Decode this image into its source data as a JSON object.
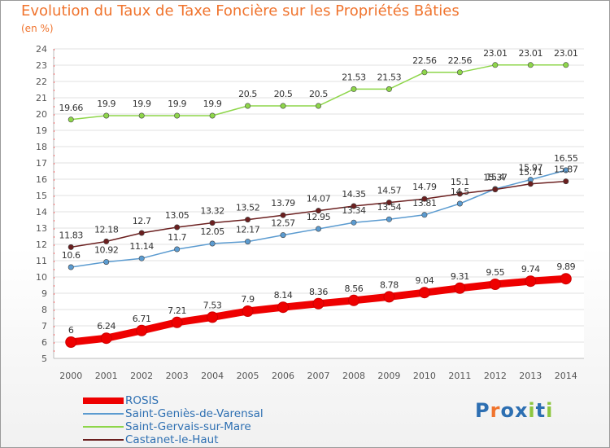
{
  "title": "Evolution du Taux de Taxe Foncière sur les Propriétés Bâties",
  "subtitle": "(en %)",
  "logo": {
    "text": "Proxiti",
    "colors": [
      "#2d6fb2",
      "#f0742e",
      "#2d6fb2",
      "#2d6fb2",
      "#8dc63f",
      "#2d6fb2",
      "#8dc63f"
    ]
  },
  "chart_data": {
    "type": "line",
    "title": "Evolution du Taux de Taxe Foncière sur les Propriétés Bâties",
    "ylabel": "(en %)",
    "xlabel": "",
    "x": [
      "2000",
      "2001",
      "2002",
      "2003",
      "2004",
      "2005",
      "2006",
      "2007",
      "2008",
      "2009",
      "2010",
      "2011",
      "2012",
      "2013",
      "2014"
    ],
    "ylim": [
      5,
      24
    ],
    "yticks": [
      "5",
      "6",
      "7",
      "8",
      "9",
      "10",
      "11",
      "12",
      "13",
      "14",
      "15",
      "16",
      "17",
      "18",
      "19",
      "20",
      "21",
      "22",
      "23",
      "24"
    ],
    "grid": "y",
    "legend": "bottom-left",
    "series": [
      {
        "name": "ROSIS",
        "color": "#ee0000",
        "values": [
          6,
          6.24,
          6.71,
          7.21,
          7.53,
          7.9,
          8.14,
          8.36,
          8.56,
          8.78,
          9.04,
          9.31,
          9.55,
          9.74,
          9.89
        ],
        "labels": [
          "6",
          "6.24",
          "6.71",
          "7.21",
          "7.53",
          "7.9",
          "8.14",
          "8.36",
          "8.56",
          "8.78",
          "9.04",
          "9.31",
          "9.55",
          "9.74",
          "9.89"
        ]
      },
      {
        "name": "Saint-Geniès-de-Varensal",
        "color": "#5b9bd0",
        "values": [
          10.6,
          10.92,
          11.14,
          11.7,
          12.05,
          12.17,
          12.57,
          12.95,
          13.34,
          13.54,
          13.81,
          14.5,
          15.4,
          15.97,
          16.55
        ],
        "labels": [
          "10.6",
          "10.92",
          "11.14",
          "11.7",
          "12.05",
          "12.17",
          "12.57",
          "12.95",
          "13.34",
          "13.54",
          "13.81",
          "14.5",
          "15.4",
          "15.97",
          "16.55"
        ]
      },
      {
        "name": "Saint-Gervais-sur-Mare",
        "color": "#8ed64a",
        "values": [
          19.66,
          19.9,
          19.9,
          19.9,
          19.9,
          20.5,
          20.5,
          20.5,
          21.53,
          21.53,
          22.56,
          22.56,
          23.01,
          23.01,
          23.01
        ],
        "labels": [
          "19.66",
          "19.9",
          "19.9",
          "19.9",
          "19.9",
          "20.5",
          "20.5",
          "20.5",
          "21.53",
          "21.53",
          "22.56",
          "22.56",
          "23.01",
          "23.01",
          "23.01"
        ]
      },
      {
        "name": "Castanet-le-Haut",
        "color": "#6b1f1f",
        "values": [
          11.83,
          12.18,
          12.7,
          13.05,
          13.32,
          13.52,
          13.79,
          14.07,
          14.35,
          14.57,
          14.79,
          15.1,
          15.37,
          15.71,
          15.87
        ],
        "labels": [
          "11.83",
          "12.18",
          "12.7",
          "13.05",
          "13.32",
          "13.52",
          "13.79",
          "14.07",
          "14.35",
          "14.57",
          "14.79",
          "15.1",
          "15.37",
          "15.71",
          "15.87"
        ]
      }
    ]
  }
}
